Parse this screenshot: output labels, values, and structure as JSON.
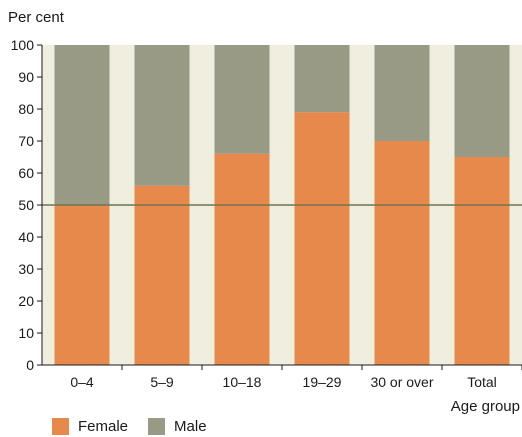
{
  "chart_data": {
    "type": "bar",
    "stacked": true,
    "ylabel": "Per cent",
    "xlabel": "Age group",
    "ylim": [
      0,
      100
    ],
    "yticks": [
      0,
      10,
      20,
      30,
      40,
      50,
      60,
      70,
      80,
      90,
      100
    ],
    "reference_line": 50,
    "categories": [
      "0–4",
      "5–9",
      "10–18",
      "19–29",
      "30 or over",
      "Total"
    ],
    "series": [
      {
        "name": "Female",
        "color": "#e8894c",
        "values": [
          50,
          56,
          66,
          79,
          70,
          65
        ]
      },
      {
        "name": "Male",
        "color": "#999a85",
        "values": [
          50,
          44,
          34,
          21,
          30,
          35
        ]
      }
    ],
    "background_band_color": "#f0eedf",
    "reference_line_color": "#6f7553",
    "legend_position": "bottom-left"
  }
}
